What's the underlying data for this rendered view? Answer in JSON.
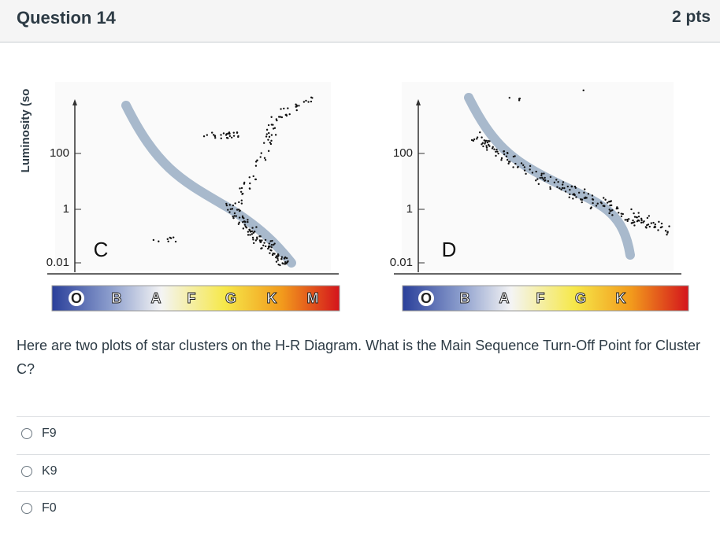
{
  "header": {
    "title": "Question 14",
    "points": "2 pts"
  },
  "figure": {
    "y_axis_label": "Luminosity (so",
    "plots": [
      {
        "label": "C",
        "yticks": [
          "100",
          "1",
          "0.01"
        ],
        "spectral_classes": [
          "O",
          "B",
          "A",
          "F",
          "G",
          "K",
          "M"
        ]
      },
      {
        "label": "D",
        "yticks": [
          "100",
          "1",
          "0.01"
        ],
        "spectral_classes": [
          "O",
          "B",
          "A",
          "F",
          "G",
          "K"
        ]
      }
    ]
  },
  "question": "Here are two plots of star clusters on the H-R Diagram. What is the Main Sequence Turn-Off Point for Cluster C?",
  "answers": [
    "F9",
    "K9",
    "F0"
  ]
}
